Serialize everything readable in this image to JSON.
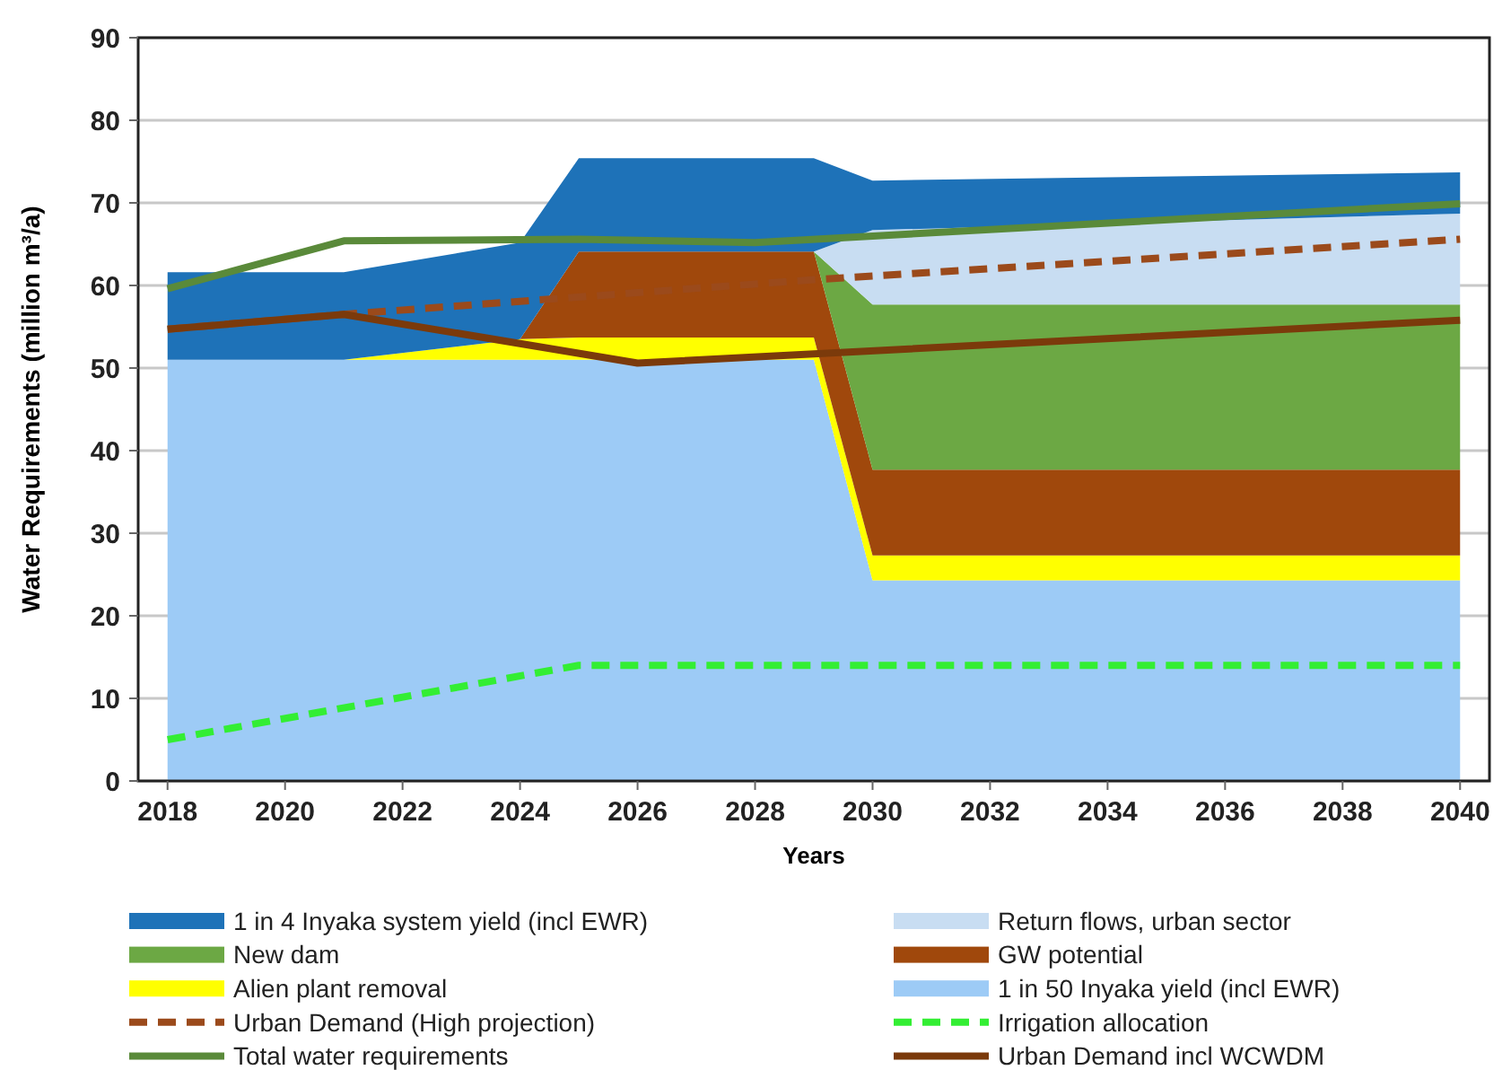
{
  "chart_data": {
    "type": "area",
    "stacked": true,
    "xlabel": "Years",
    "ylabel": "Water Requirements (million m³/a)",
    "x": [
      2018,
      2021,
      2024,
      2025,
      2029,
      2030,
      2040
    ],
    "xlim": [
      2017.5,
      2040.5
    ],
    "xticks": [
      2018,
      2020,
      2022,
      2024,
      2026,
      2028,
      2030,
      2032,
      2034,
      2036,
      2038,
      2040
    ],
    "ylim": [
      0,
      90
    ],
    "yticks": [
      0,
      10,
      20,
      30,
      40,
      50,
      60,
      70,
      80,
      90
    ],
    "grid": "y",
    "legend": "bottom",
    "series": [
      {
        "name": "1 in 50 Inyaka yield (incl EWR)",
        "color": "#9dcbf6",
        "values": [
          51,
          51,
          51,
          51,
          51,
          24.3,
          24.3
        ]
      },
      {
        "name": "Alien plant removal",
        "color": "#ffff00",
        "values": [
          0,
          0,
          2.5,
          2.7,
          2.7,
          3,
          3
        ]
      },
      {
        "name": "GW potential",
        "color": "#a0480c",
        "values": [
          0,
          0,
          0,
          10.4,
          10.4,
          10.4,
          10.4
        ]
      },
      {
        "name": "New dam",
        "color": "#6ca844",
        "values": [
          0,
          0,
          0,
          0,
          0,
          20,
          20
        ]
      },
      {
        "name": "Return flows, urban sector",
        "color": "#c8ddf2",
        "values": [
          0,
          0,
          0,
          0,
          0,
          9,
          11
        ]
      },
      {
        "name": "1 in 4 Inyaka system yield (incl EWR)",
        "color": "#1e72b8",
        "values": [
          10.6,
          10.6,
          11.7,
          11.3,
          11.3,
          6,
          5
        ]
      },
      {
        "name": "Urban Demand (High projection)",
        "type": "line",
        "line_style": "dashed",
        "color": "#9b4a1b",
        "x": [
          2018,
          2021,
          2029,
          2040
        ],
        "values": [
          54.7,
          56.5,
          60.7,
          65.6
        ]
      },
      {
        "name": "Irrigation allocation",
        "type": "line",
        "line_style": "dashed",
        "color": "#33ee33",
        "x": [
          2018,
          2025,
          2040
        ],
        "values": [
          5,
          14,
          14
        ]
      },
      {
        "name": "Total water requirements",
        "type": "line",
        "line_style": "solid",
        "color": "#5a8a3a",
        "x": [
          2018,
          2021,
          2025,
          2028,
          2040
        ],
        "values": [
          59.6,
          65.4,
          65.6,
          65.2,
          69.9
        ]
      },
      {
        "name": "Urban Demand incl WCWDM",
        "type": "line",
        "line_style": "solid",
        "color": "#7b3a0b",
        "x": [
          2018,
          2021,
          2026,
          2040
        ],
        "values": [
          54.7,
          56.5,
          50.6,
          55.8
        ]
      }
    ]
  }
}
